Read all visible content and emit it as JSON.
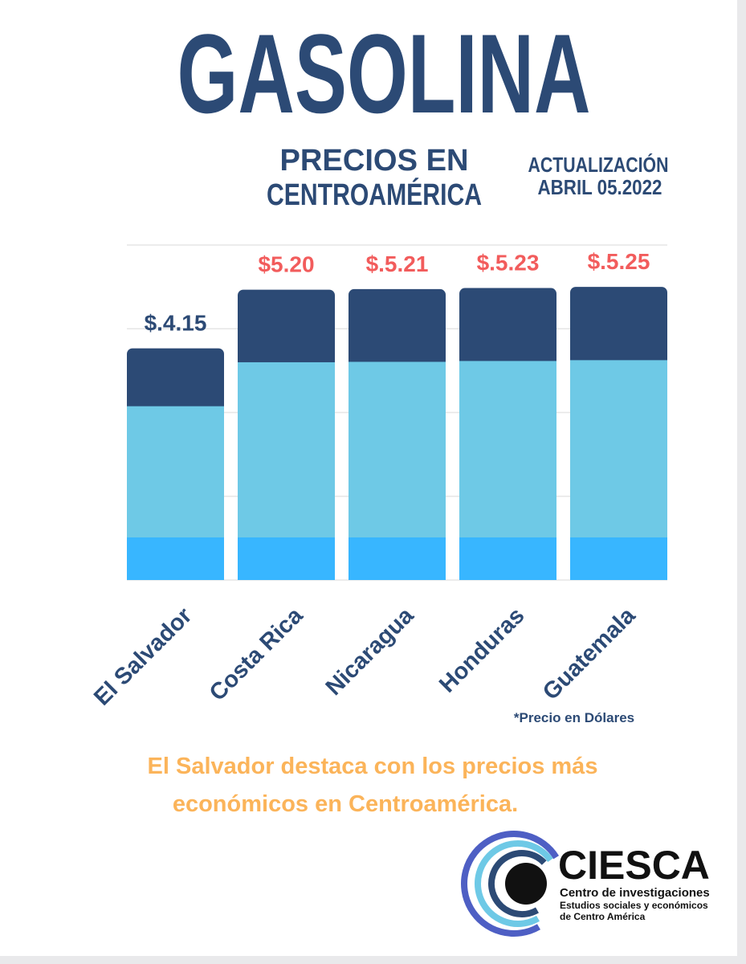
{
  "chart_data": {
    "type": "bar",
    "title": "GASOLINA",
    "subtitle_lines": [
      "PRECIOS EN",
      "CENTROAMÉRICA"
    ],
    "update_lines": [
      "ACTUALIZACIÓN",
      "ABRIL 05.2022"
    ],
    "categories": [
      "El Salvador",
      "Costa Rica",
      "Nicaragua",
      "Honduras",
      "Guatemala"
    ],
    "values": [
      4.15,
      5.2,
      5.21,
      5.23,
      5.25
    ],
    "value_labels": [
      "$.4.15",
      "$5.20",
      "$.5.21",
      "$.5.23",
      "$.5.25"
    ],
    "value_label_colors": [
      "#2c4a75",
      "#f25c5c",
      "#f25c5c",
      "#f25c5c",
      "#f25c5c"
    ],
    "colors": [
      "#2c4a75",
      "#6ec9e6",
      "#38b6ff"
    ],
    "ylim": [
      0,
      6
    ],
    "yticks": [
      0,
      1.5,
      3,
      4.5,
      6
    ],
    "grid": true,
    "note": "*Precio en Dólares",
    "caption_lines": [
      "El Salvador destaca con los precios más",
      "económicos en Centroamérica."
    ]
  },
  "logo": {
    "name": "CIESCA",
    "lines": [
      "Centro de investigaciones",
      "Estudios sociales y económicos",
      "de Centro América"
    ]
  }
}
